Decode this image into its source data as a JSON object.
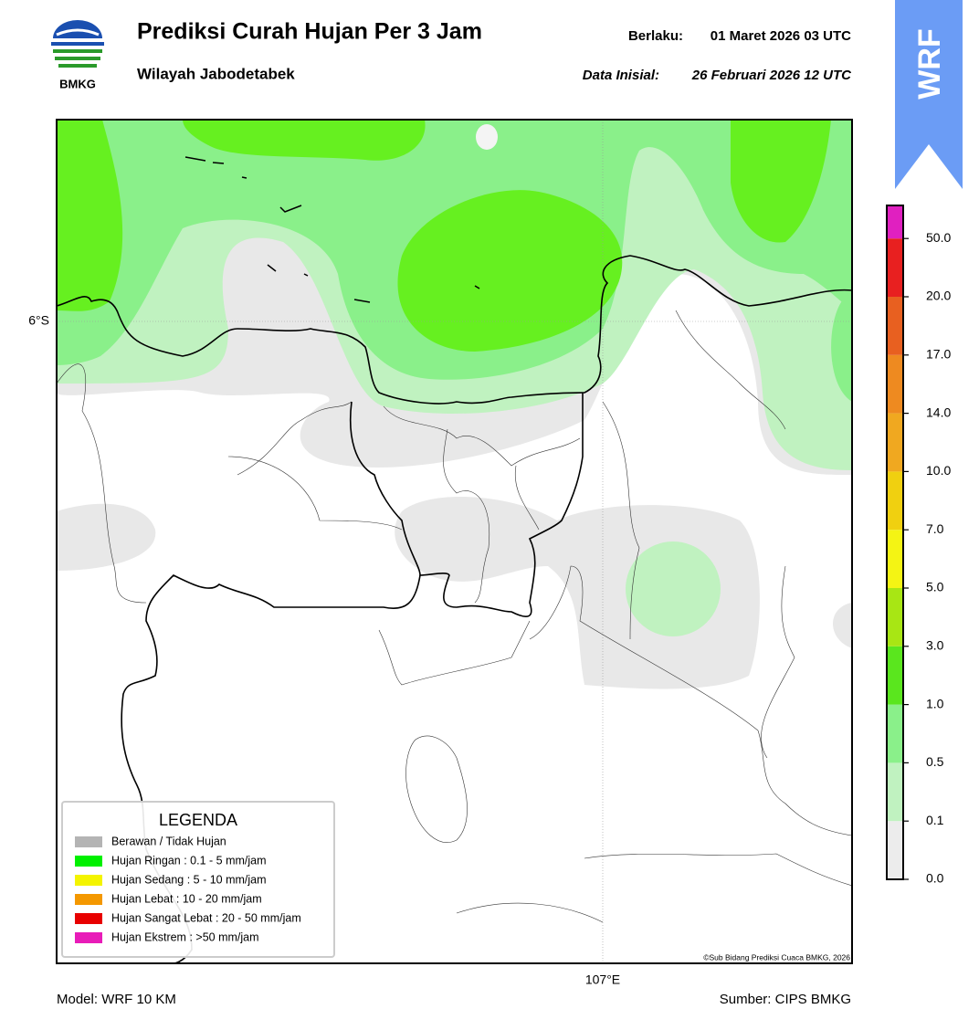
{
  "header": {
    "logo_text": "BMKG",
    "title": "Prediksi Curah Hujan Per 3 Jam",
    "subtitle": "Wilayah Jabodetabek",
    "valid_label": "Berlaku:",
    "valid_time": "01 Maret 2026 03 UTC",
    "init_label": "Data Inisial:",
    "init_time": "26 Februari 2026 12 UTC"
  },
  "badge": "WRF",
  "map": {
    "lat_label": "6°S",
    "lon_label": "107°E",
    "credit": "©Sub Bidang Prediksi Cuaca BMKG, 2026"
  },
  "legend": {
    "title": "LEGENDA",
    "items": [
      {
        "label": "Berawan / Tidak Hujan",
        "color": "#b4b4b4"
      },
      {
        "label": "Hujan Ringan : 0.1 - 5 mm/jam",
        "color": "#00f000"
      },
      {
        "label": "Hujan Sedang : 5 - 10 mm/jam",
        "color": "#f4f400"
      },
      {
        "label": "Hujan Lebat : 10 - 20 mm/jam",
        "color": "#f49800"
      },
      {
        "label": "Hujan Sangat Lebat : 20 - 50 mm/jam",
        "color": "#e80000"
      },
      {
        "label": "Hujan Ekstrem : >50 mm/jam",
        "color": "#e81cb8"
      }
    ]
  },
  "colorbar": {
    "ticks": [
      "0.0",
      "0.1",
      "0.5",
      "1.0",
      "3.0",
      "5.0",
      "7.0",
      "10.0",
      "14.0",
      "17.0",
      "20.0",
      "50.0"
    ],
    "colors": [
      "#ececec",
      "#c0f2c0",
      "#8af08a",
      "#5ae61e",
      "#a8e614",
      "#f4f414",
      "#f0d010",
      "#f0a820",
      "#ee8a20",
      "#e86020",
      "#e82020",
      "#e020c0"
    ]
  },
  "footer": {
    "model": "Model: WRF 10 KM",
    "source": "Sumber: CIPS BMKG"
  }
}
